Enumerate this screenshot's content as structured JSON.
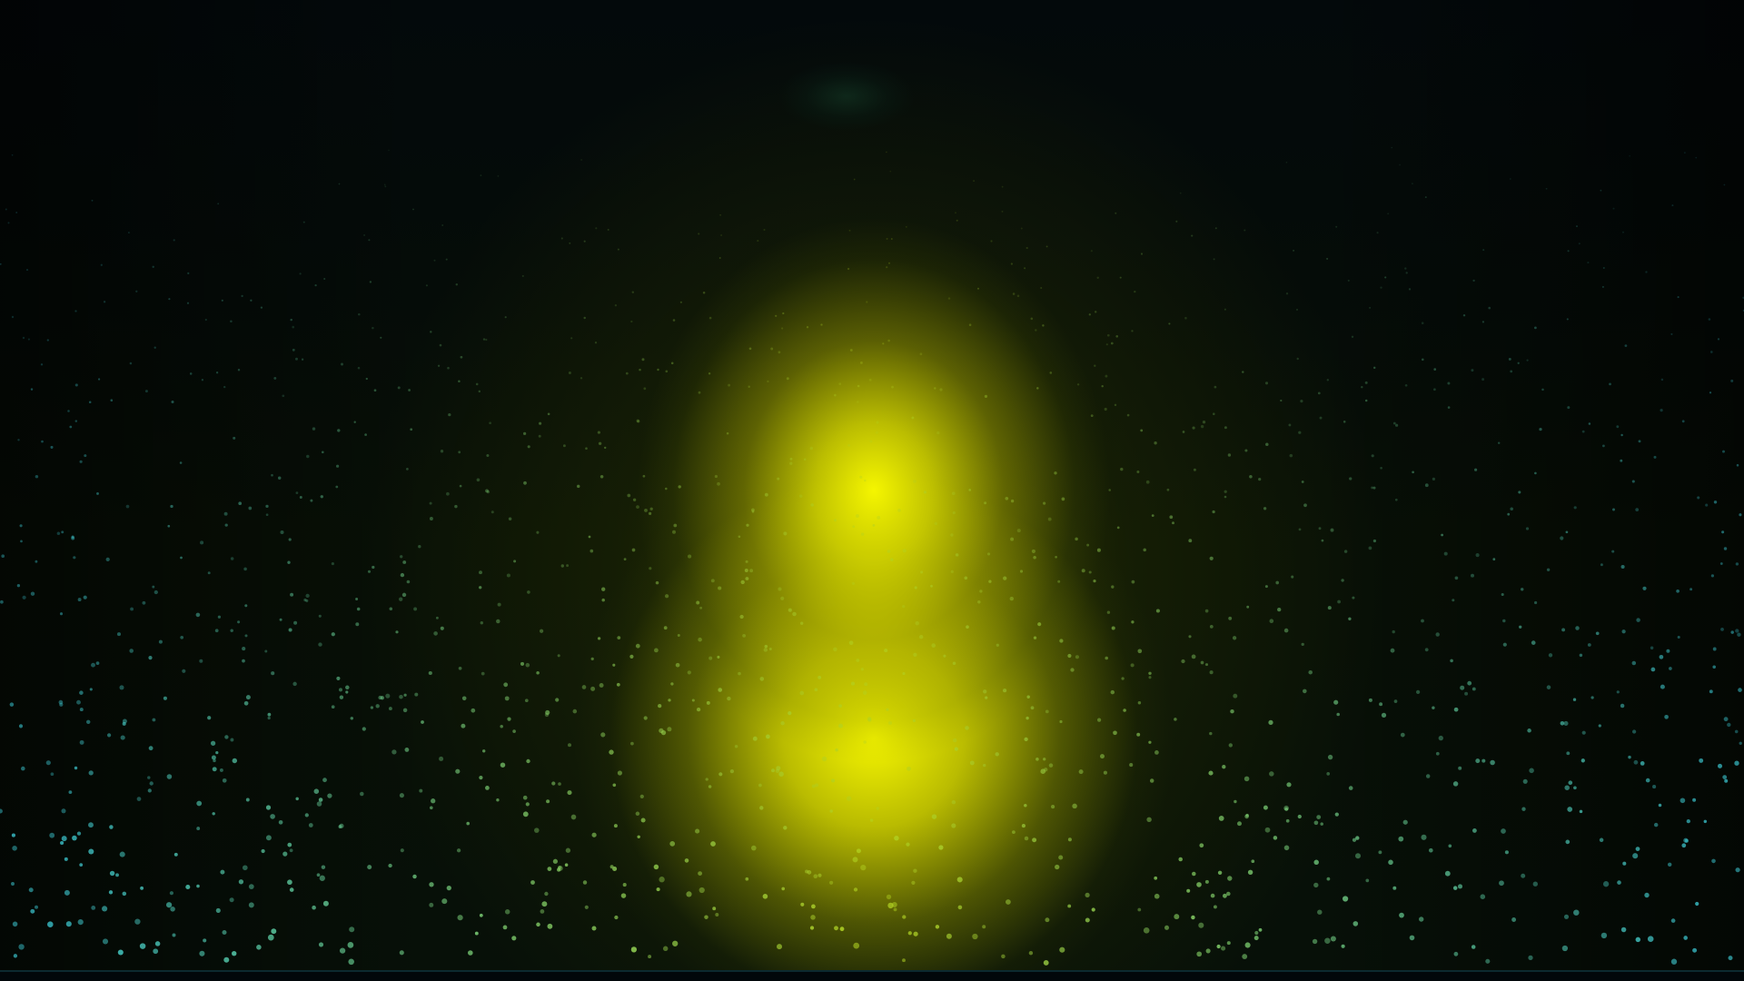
{
  "scene": {
    "colors": {
      "background": "#020508",
      "glow": "#ffff00",
      "particle_warm": "#b4d21e",
      "particle_cool": "#3cc8d2"
    }
  }
}
